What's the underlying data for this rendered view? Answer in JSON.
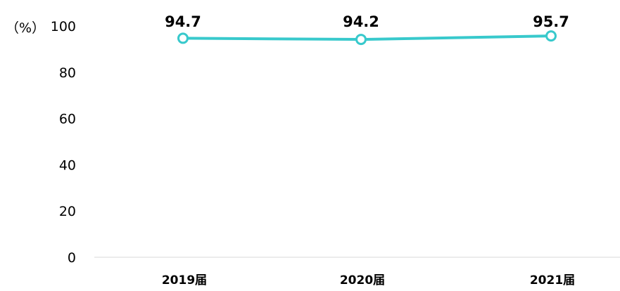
{
  "chart_data": {
    "type": "line",
    "y_unit_label": "（%）",
    "categories": [
      "2019届",
      "2020届",
      "2021届"
    ],
    "series": [
      {
        "values": [
          94.7,
          94.2,
          95.7
        ],
        "data_labels": [
          "94.7",
          "94.2",
          "95.7"
        ]
      }
    ],
    "ylim": [
      0,
      100
    ],
    "y_ticks": [
      0,
      20,
      40,
      60,
      80,
      100
    ],
    "grid": false,
    "legend": "none",
    "colors": {
      "line": "#38c9cc",
      "marker_fill": "#ffffff",
      "axis": "#d9d9d9",
      "text": "#000000"
    }
  }
}
